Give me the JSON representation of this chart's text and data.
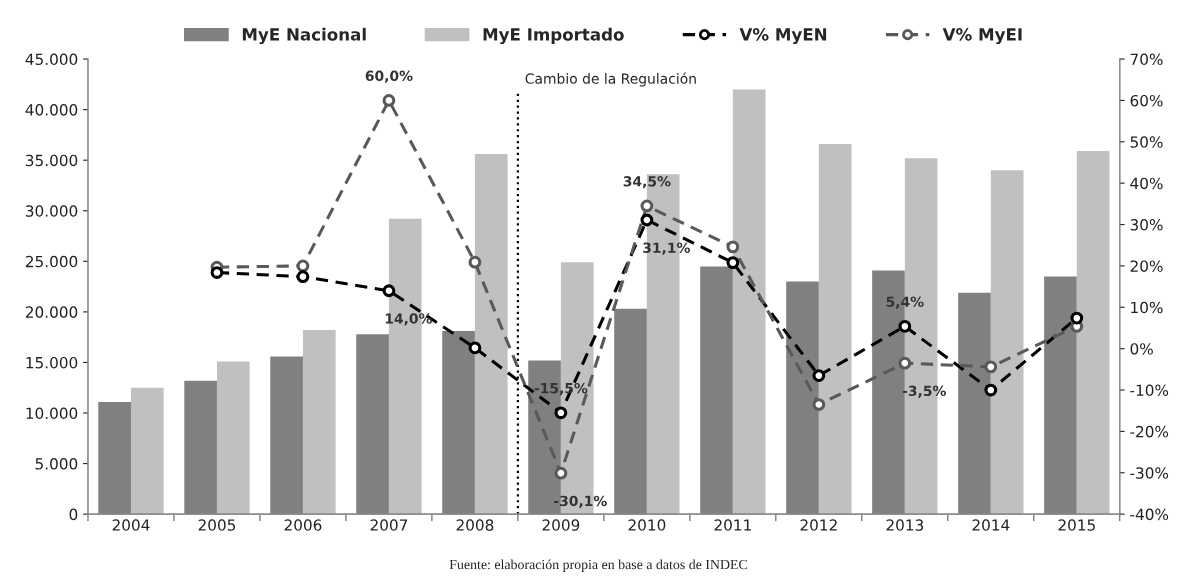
{
  "chart_data": {
    "type": "bar",
    "categories": [
      "2004",
      "2005",
      "2006",
      "2007",
      "2008",
      "2009",
      "2010",
      "2011",
      "2012",
      "2013",
      "2014",
      "2015"
    ],
    "series": [
      {
        "name": "MyE Nacional",
        "color": "#808080",
        "values": [
          11100,
          13200,
          15600,
          17800,
          18100,
          15200,
          20300,
          24500,
          23000,
          24100,
          21900,
          23500
        ]
      },
      {
        "name": "MyE Importado",
        "color": "#c0c0c0",
        "values": [
          12500,
          15100,
          18200,
          29200,
          35600,
          24900,
          33600,
          42000,
          36600,
          35200,
          34000,
          35900
        ]
      },
      {
        "name": "V% MyEN",
        "type": "line",
        "axis": "y2",
        "color": "#000000",
        "marker": "circle",
        "line_style": "dashed",
        "values": [
          null,
          18.4,
          17.4,
          14.0,
          0.2,
          -15.5,
          31.1,
          20.8,
          -6.5,
          5.4,
          -10.0,
          7.4
        ],
        "value_labels": [
          null,
          null,
          null,
          "14,0%",
          null,
          "-15,5%",
          "31,1%",
          null,
          null,
          "5,4%",
          null,
          null
        ]
      },
      {
        "name": "V% MyEI",
        "type": "line",
        "axis": "y2",
        "color": "#595959",
        "marker": "circle",
        "line_style": "dashed",
        "values": [
          null,
          19.7,
          20.0,
          60.0,
          20.9,
          -30.1,
          34.5,
          24.6,
          -13.5,
          -3.5,
          -4.4,
          5.4
        ],
        "value_labels": [
          null,
          null,
          null,
          "60,0%",
          null,
          "-30,1%",
          "34,5%",
          null,
          null,
          "-3,5%",
          null,
          null
        ]
      }
    ],
    "ylim": [
      0,
      45000
    ],
    "yticks": [
      {
        "value": 0,
        "label": "0"
      },
      {
        "value": 5000,
        "label": "5.000"
      },
      {
        "value": 10000,
        "label": "10.000"
      },
      {
        "value": 15000,
        "label": "15.000"
      },
      {
        "value": 20000,
        "label": "20.000"
      },
      {
        "value": 25000,
        "label": "25.000"
      },
      {
        "value": 30000,
        "label": "30.000"
      },
      {
        "value": 35000,
        "label": "35.000"
      },
      {
        "value": 40000,
        "label": "40.000"
      },
      {
        "value": 45000,
        "label": "45.000"
      }
    ],
    "y2lim": [
      -40,
      70
    ],
    "y2ticks": [
      {
        "value": -40,
        "label": "-40%"
      },
      {
        "value": -30,
        "label": "-30%"
      },
      {
        "value": -20,
        "label": "-20%"
      },
      {
        "value": -10,
        "label": "-10%"
      },
      {
        "value": 0,
        "label": "0%"
      },
      {
        "value": 10,
        "label": "10%"
      },
      {
        "value": 20,
        "label": "20%"
      },
      {
        "value": 30,
        "label": "30%"
      },
      {
        "value": 40,
        "label": "40%"
      },
      {
        "value": 50,
        "label": "50%"
      },
      {
        "value": 60,
        "label": "60%"
      },
      {
        "value": 70,
        "label": "70%"
      }
    ],
    "annotations": [
      "Cambio de la Regulación",
      "Fuente: elaboración propia en base a datos de INDEC"
    ],
    "legend": "top",
    "grid": false
  }
}
